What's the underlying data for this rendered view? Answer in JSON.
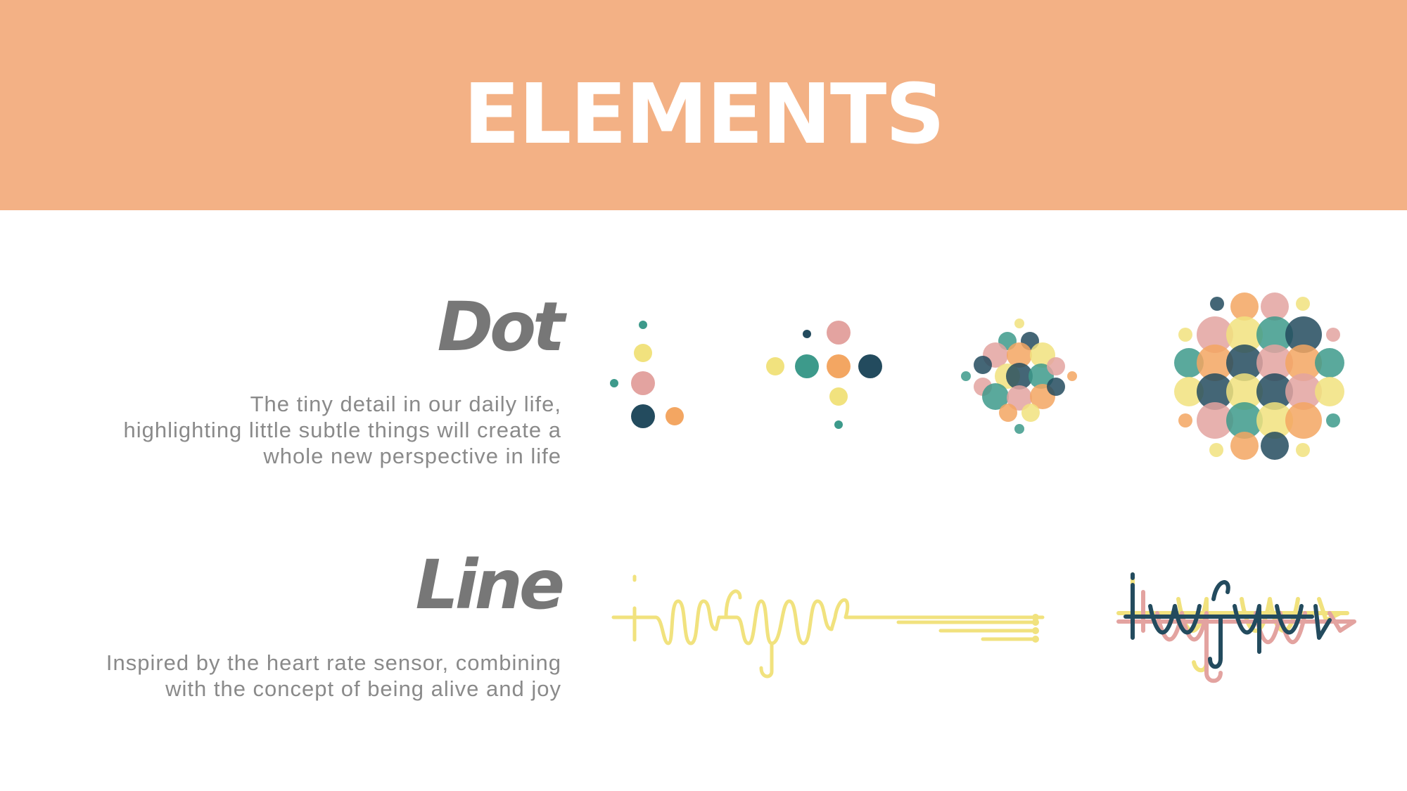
{
  "header": {
    "title": "ELEMENTS",
    "background": "#f3b185"
  },
  "sections": [
    {
      "title": "Dot",
      "description": [
        "The tiny detail in our daily life,",
        "highlighting little subtle things will create a",
        "whole new perspective in life"
      ]
    },
    {
      "title": "Line",
      "description": [
        "Inspired by the heart rate sensor, combining",
        "with the concept of being alive and joy"
      ]
    }
  ],
  "palette": {
    "navy": "#234b5e",
    "teal": "#3d9a8b",
    "pink": "#e3a3a0",
    "orange": "#f3a662",
    "yellow": "#f1e27e"
  },
  "line_graphics": {
    "single": {
      "script": "infyne",
      "color": "#f1e27e"
    },
    "layered": {
      "script": "infyne",
      "colors": [
        "#f1e27e",
        "#e3a3a0",
        "#234b5e"
      ]
    }
  }
}
